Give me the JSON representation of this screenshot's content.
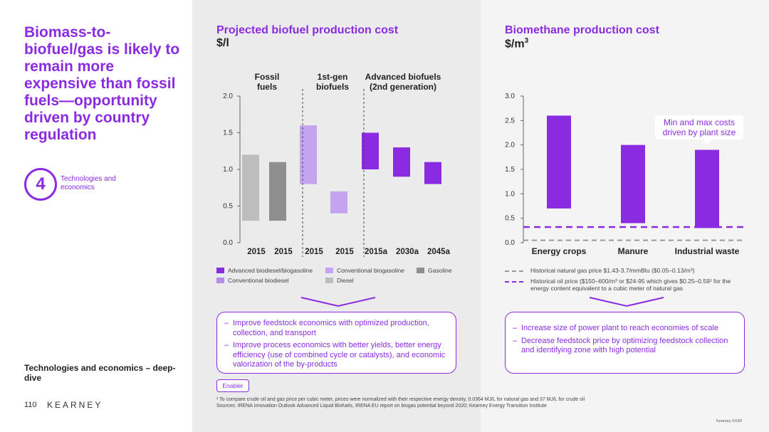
{
  "headline": "Biomass-to-biofuel/gas is likely to remain more expensive than fossil fuels—opportunity driven by country regulation",
  "badge": {
    "number": "4",
    "label": "Technologies and economics"
  },
  "section_label": "Technologies and economics – deep-dive",
  "page_number": "110",
  "brand": "KEARNEY",
  "enabler_label": "Enabler",
  "footnote_1": "¹ To compare crude oil and gas price per cubic meter, prices were normalized with their respective energy density, 0.0364 MJ/L for natural gas and 37 MJ/L for crude oil",
  "footnote_2": "Sources: IRENA Innovation Outlook Advanced Liquid Biofuels, IRENA EU report on biogas potential beyond 2020; Kearney Energy Transition Institute",
  "copyright": "Kearney XX/ID",
  "colors": {
    "accent": "#8a2be2",
    "advanced": "#8a2be2",
    "conventional": "#b98ee8",
    "gasoline": "#8f8f8f",
    "diesel": "#bdbdbd"
  },
  "chart_data": [
    {
      "type": "bar",
      "title": "Projected biofuel production cost",
      "ylabel": "$/l",
      "ylim": [
        0,
        2.0
      ],
      "yticks": [
        "0.0",
        "0.5",
        "1.0",
        "1.5",
        "2.0"
      ],
      "groups": [
        {
          "label": "Fossil\nfuels"
        },
        {
          "label": "1st-gen\nbiofuels"
        },
        {
          "label": "Advanced biofuels\n(2nd generation)"
        }
      ],
      "bars": [
        {
          "category": "2015",
          "low": 0.3,
          "high": 1.2,
          "series": "Diesel"
        },
        {
          "category": "2015",
          "low": 0.3,
          "high": 1.1,
          "series": "Gasoline"
        },
        {
          "category": "2015",
          "low": 0.8,
          "high": 1.6,
          "series": "Conventional biogasoline"
        },
        {
          "category": "2015",
          "low": 0.4,
          "high": 0.7,
          "series": "Conventional biodiesel"
        },
        {
          "category": "2015a",
          "low": 1.0,
          "high": 1.5,
          "series": "Advanced biodiesel/biogasoline"
        },
        {
          "category": "2030a",
          "low": 0.9,
          "high": 1.3,
          "series": "Advanced biodiesel/biogasoline"
        },
        {
          "category": "2045a",
          "low": 0.8,
          "high": 1.1,
          "series": "Advanced biodiesel/biogasoline"
        }
      ],
      "legend": [
        {
          "name": "Advanced biodiesel/biogasoline",
          "color": "#8a2be2"
        },
        {
          "name": "Conventional biogasoline",
          "color": "#c4a3ef"
        },
        {
          "name": "Gasoline",
          "color": "#8f8f8f"
        },
        {
          "name": "Conventional biodiesel",
          "color": "#b68de6"
        },
        {
          "name": "Diesel",
          "color": "#bdbdbd"
        }
      ]
    },
    {
      "type": "bar",
      "title": "Biomethane production cost",
      "ylabel": "$/m",
      "ylabel_sup": "3",
      "ylim": [
        0,
        3.0
      ],
      "yticks": [
        "0.0",
        "0.5",
        "1.0",
        "1.5",
        "2.0",
        "2.5",
        "3.0"
      ],
      "categories": [
        "Energy crops",
        "Manure",
        "Industrial waste"
      ],
      "bars": [
        {
          "category": "Energy crops",
          "low": 0.7,
          "high": 2.6
        },
        {
          "category": "Manure",
          "low": 0.4,
          "high": 2.0
        },
        {
          "category": "Industrial waste",
          "low": 0.3,
          "high": 1.9
        }
      ],
      "reference_lines": [
        {
          "name": "Historical natural gas price $1.43-3.7/mmBtu ($0.05–0.13/m³)",
          "value": 0.05,
          "style": "dashed-gray"
        },
        {
          "name": "Historical oil price ($150–600/m³ or $24-95 which gives $0.25–0.59¹ for the energy content equivalent to a cubic meter of natural gas",
          "value": 0.32,
          "style": "dashed-purple"
        }
      ],
      "annotation": "Min and max costs driven by plant size"
    }
  ],
  "mid_box": [
    "Improve feedstock economics with optimized production, collection, and transport",
    "Improve process economics with better yields, better energy efficiency (use of combined cycle or catalysts), and economic valorization of the by-products"
  ],
  "right_box": [
    "Increase size of power plant to reach economies of scale",
    "Decrease feedstock price by optimizing  feedstock collection and identifying zone with high potential"
  ]
}
